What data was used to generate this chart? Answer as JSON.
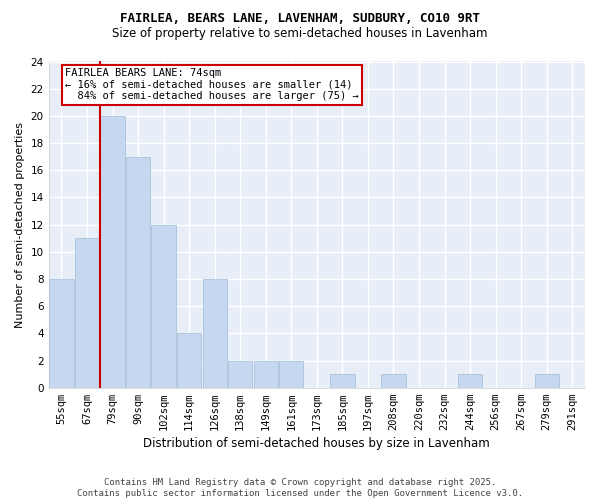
{
  "title": "FAIRLEA, BEARS LANE, LAVENHAM, SUDBURY, CO10 9RT",
  "subtitle": "Size of property relative to semi-detached houses in Lavenham",
  "xlabel": "Distribution of semi-detached houses by size in Lavenham",
  "ylabel": "Number of semi-detached properties",
  "categories": [
    "55sqm",
    "67sqm",
    "79sqm",
    "90sqm",
    "102sqm",
    "114sqm",
    "126sqm",
    "138sqm",
    "149sqm",
    "161sqm",
    "173sqm",
    "185sqm",
    "197sqm",
    "208sqm",
    "220sqm",
    "232sqm",
    "244sqm",
    "256sqm",
    "267sqm",
    "279sqm",
    "291sqm"
  ],
  "values": [
    8,
    11,
    20,
    17,
    12,
    4,
    8,
    2,
    2,
    2,
    0,
    1,
    0,
    1,
    0,
    0,
    1,
    0,
    0,
    1,
    0
  ],
  "bar_color": "#c5d8ef",
  "bar_edge_color": "#a0bcd8",
  "red_line_x": 1.5,
  "marker_label": "FAIRLEA BEARS LANE: 74sqm",
  "pct_smaller": 16,
  "pct_smaller_count": 14,
  "pct_larger": 84,
  "pct_larger_count": 75,
  "ylim": [
    0,
    24
  ],
  "yticks": [
    0,
    2,
    4,
    6,
    8,
    10,
    12,
    14,
    16,
    18,
    20,
    22,
    24
  ],
  "red_line_color": "#cc0000",
  "annotation_box_color": "#cc0000",
  "plot_bg_color": "#e8eef8",
  "fig_bg_color": "#ffffff",
  "grid_color": "#ffffff",
  "footer": "Contains HM Land Registry data © Crown copyright and database right 2025.\nContains public sector information licensed under the Open Government Licence v3.0.",
  "title_fontsize": 9,
  "subtitle_fontsize": 8.5,
  "ylabel_fontsize": 8,
  "xlabel_fontsize": 8.5,
  "tick_fontsize": 7.5,
  "annotation_fontsize": 7.5,
  "footer_fontsize": 6.5
}
